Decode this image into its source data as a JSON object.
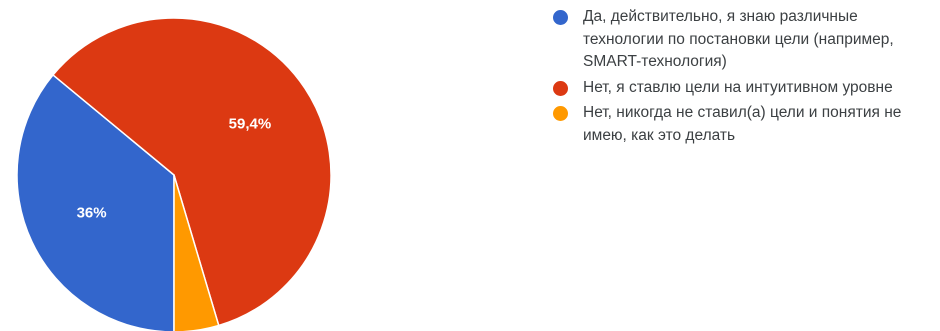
{
  "chart_data": {
    "type": "pie",
    "slices": [
      {
        "name": "Да, действительно, я знаю различные технологии по постановки цели (например, SMART-технология)",
        "value": 36,
        "label": "36%",
        "color": "#3366cc"
      },
      {
        "name": "Нет, я ставлю цели на интуитивном уровне",
        "value": 59.4,
        "label": "59,4%",
        "color": "#dc3912"
      },
      {
        "name": "Нет, никогда не ставил(а) цели и понятия не имею, как это делать",
        "value": 4.6,
        "label": "",
        "color": "#ff9900"
      }
    ],
    "start_angle_deg": 90,
    "direction": "clockwise",
    "legend_position": "right"
  }
}
